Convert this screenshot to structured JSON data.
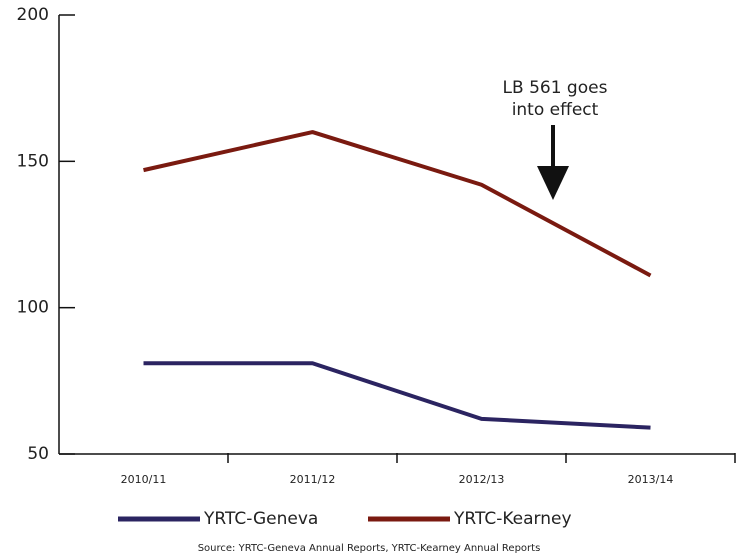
{
  "chart_data": {
    "type": "line",
    "categories": [
      "2010/11",
      "2011/12",
      "2012/13",
      "2013/14"
    ],
    "series": [
      {
        "name": "YRTC-Geneva",
        "color": "#2b2461",
        "values": [
          81,
          81,
          62,
          59
        ]
      },
      {
        "name": "YRTC-Kearney",
        "color": "#7a1a10",
        "values": [
          147,
          160,
          142,
          111
        ]
      }
    ],
    "ylim": [
      50,
      200
    ],
    "yticks": [
      50,
      100,
      150,
      200
    ],
    "annotation": [
      "LB 561 goes",
      "into effect"
    ],
    "source": "Source: YRTC-Geneva Annual Reports, YRTC-Kearney Annual Reports",
    "legend": "bottom"
  }
}
